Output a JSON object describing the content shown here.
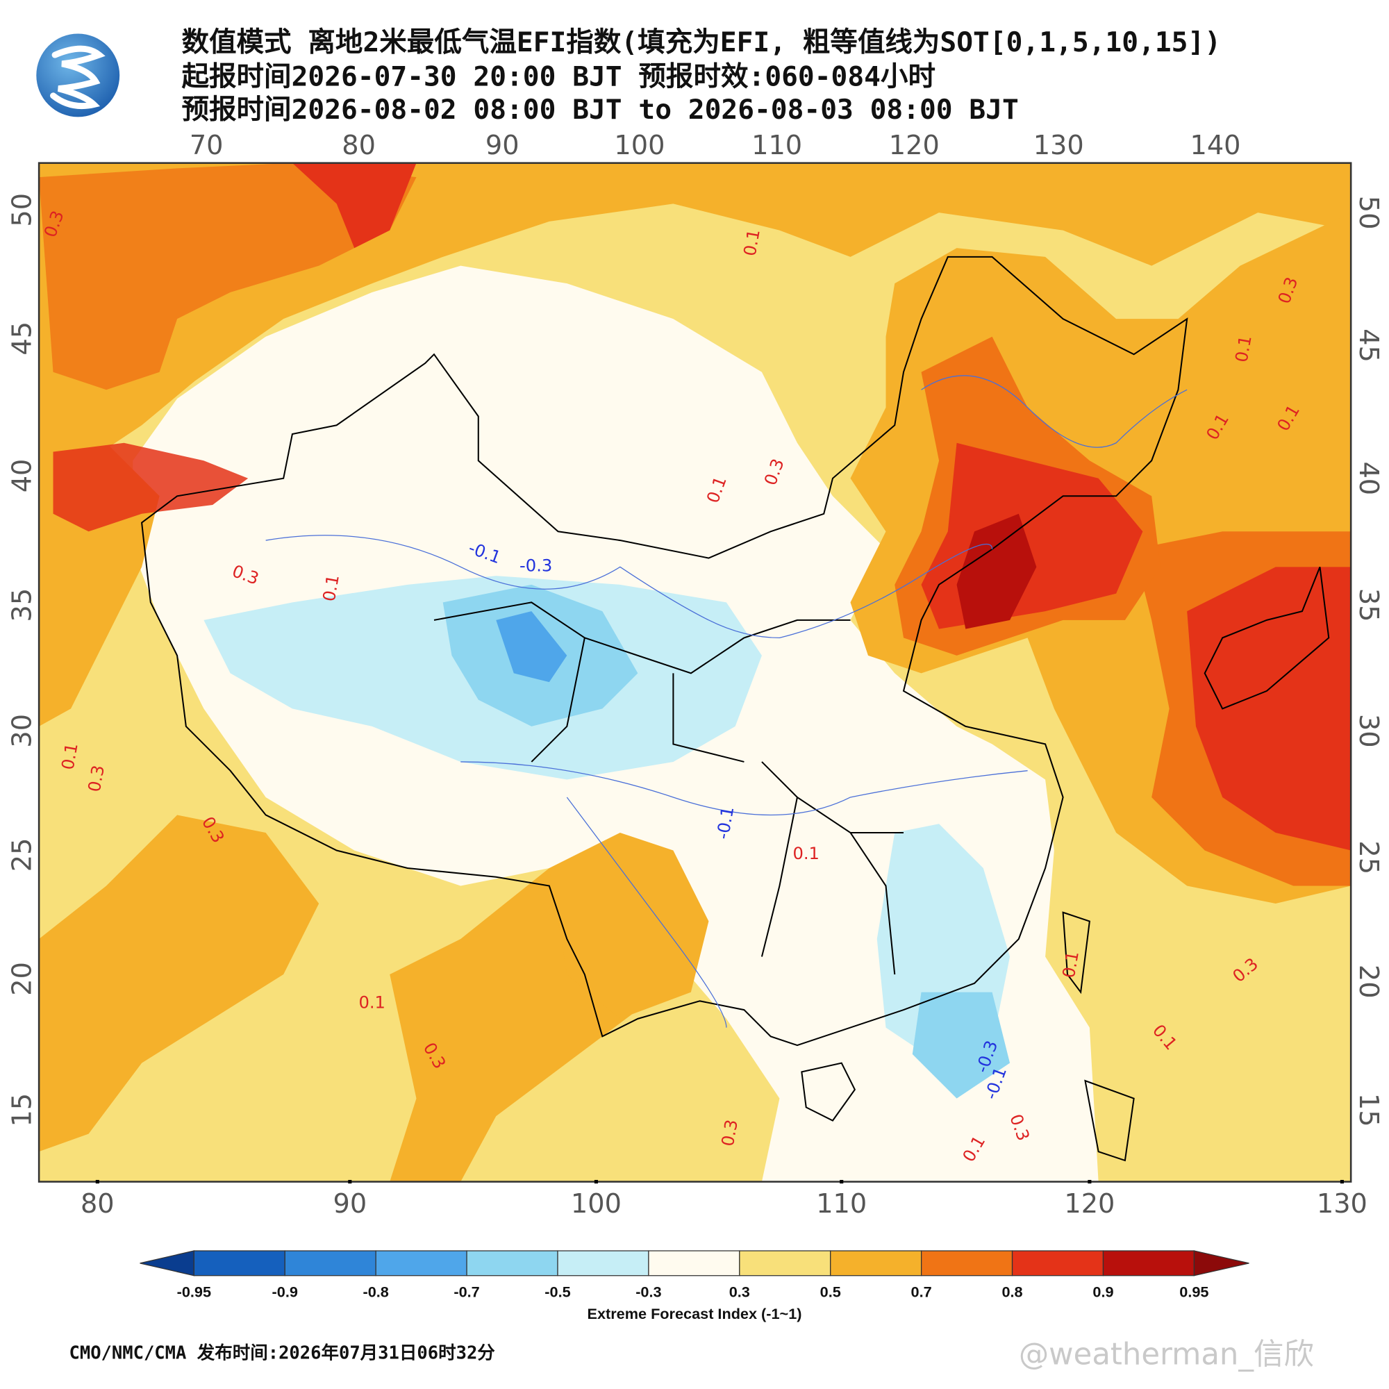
{
  "header": {
    "title": "数值模式 离地2米最低气温EFI指数(填充为EFI, 粗等值线为SOT[0,1,5,10,15])",
    "issue_line": "起报时间2026-07-30 20:00 BJT 预报时效:060-084小时",
    "valid_line": "预报时间2026-08-02 08:00 BJT to 2026-08-03 08:00 BJT"
  },
  "map": {
    "top_lon_ticks": [
      70,
      80,
      90,
      100,
      110,
      120,
      130,
      140
    ],
    "bottom_lon_ticks": [
      80,
      90,
      100,
      110,
      120,
      130
    ],
    "left_lat_ticks": [
      50,
      45,
      40,
      35,
      30,
      25,
      20,
      15
    ],
    "right_lat_ticks": [
      50,
      45,
      40,
      35,
      30,
      25,
      20,
      15
    ],
    "contour_labels": [
      0.3,
      0.1,
      0.3,
      0.1,
      0.1,
      0.1,
      0.3,
      0.1,
      -0.1,
      -0.3,
      0.3,
      0.1,
      0.1,
      0.3,
      0.3,
      -0.1,
      0.1,
      0.1,
      0.3,
      0.3,
      -0.3,
      -0.1,
      0.3,
      0.1,
      0.1,
      0.3,
      0.1
    ]
  },
  "colorbar": {
    "title": "Extreme Forecast Index (-1~1)",
    "bounds": [
      -0.95,
      -0.9,
      -0.8,
      -0.7,
      -0.5,
      -0.3,
      0.3,
      0.5,
      0.7,
      0.8,
      0.9,
      0.95
    ],
    "colors": [
      "#0a3d8f",
      "#1560bd",
      "#2f85d8",
      "#4fa6ea",
      "#8ed6f0",
      "#c6eef6",
      "#fffbef",
      "#f8e07a",
      "#f5b12b",
      "#f07415",
      "#e43318",
      "#b8100c",
      "#8c0a0a"
    ]
  },
  "footer": {
    "credit": "CMO/NMC/CMA 发布时间:2026年07月31日06时32分",
    "watermark": "@weatherman_信欣"
  }
}
